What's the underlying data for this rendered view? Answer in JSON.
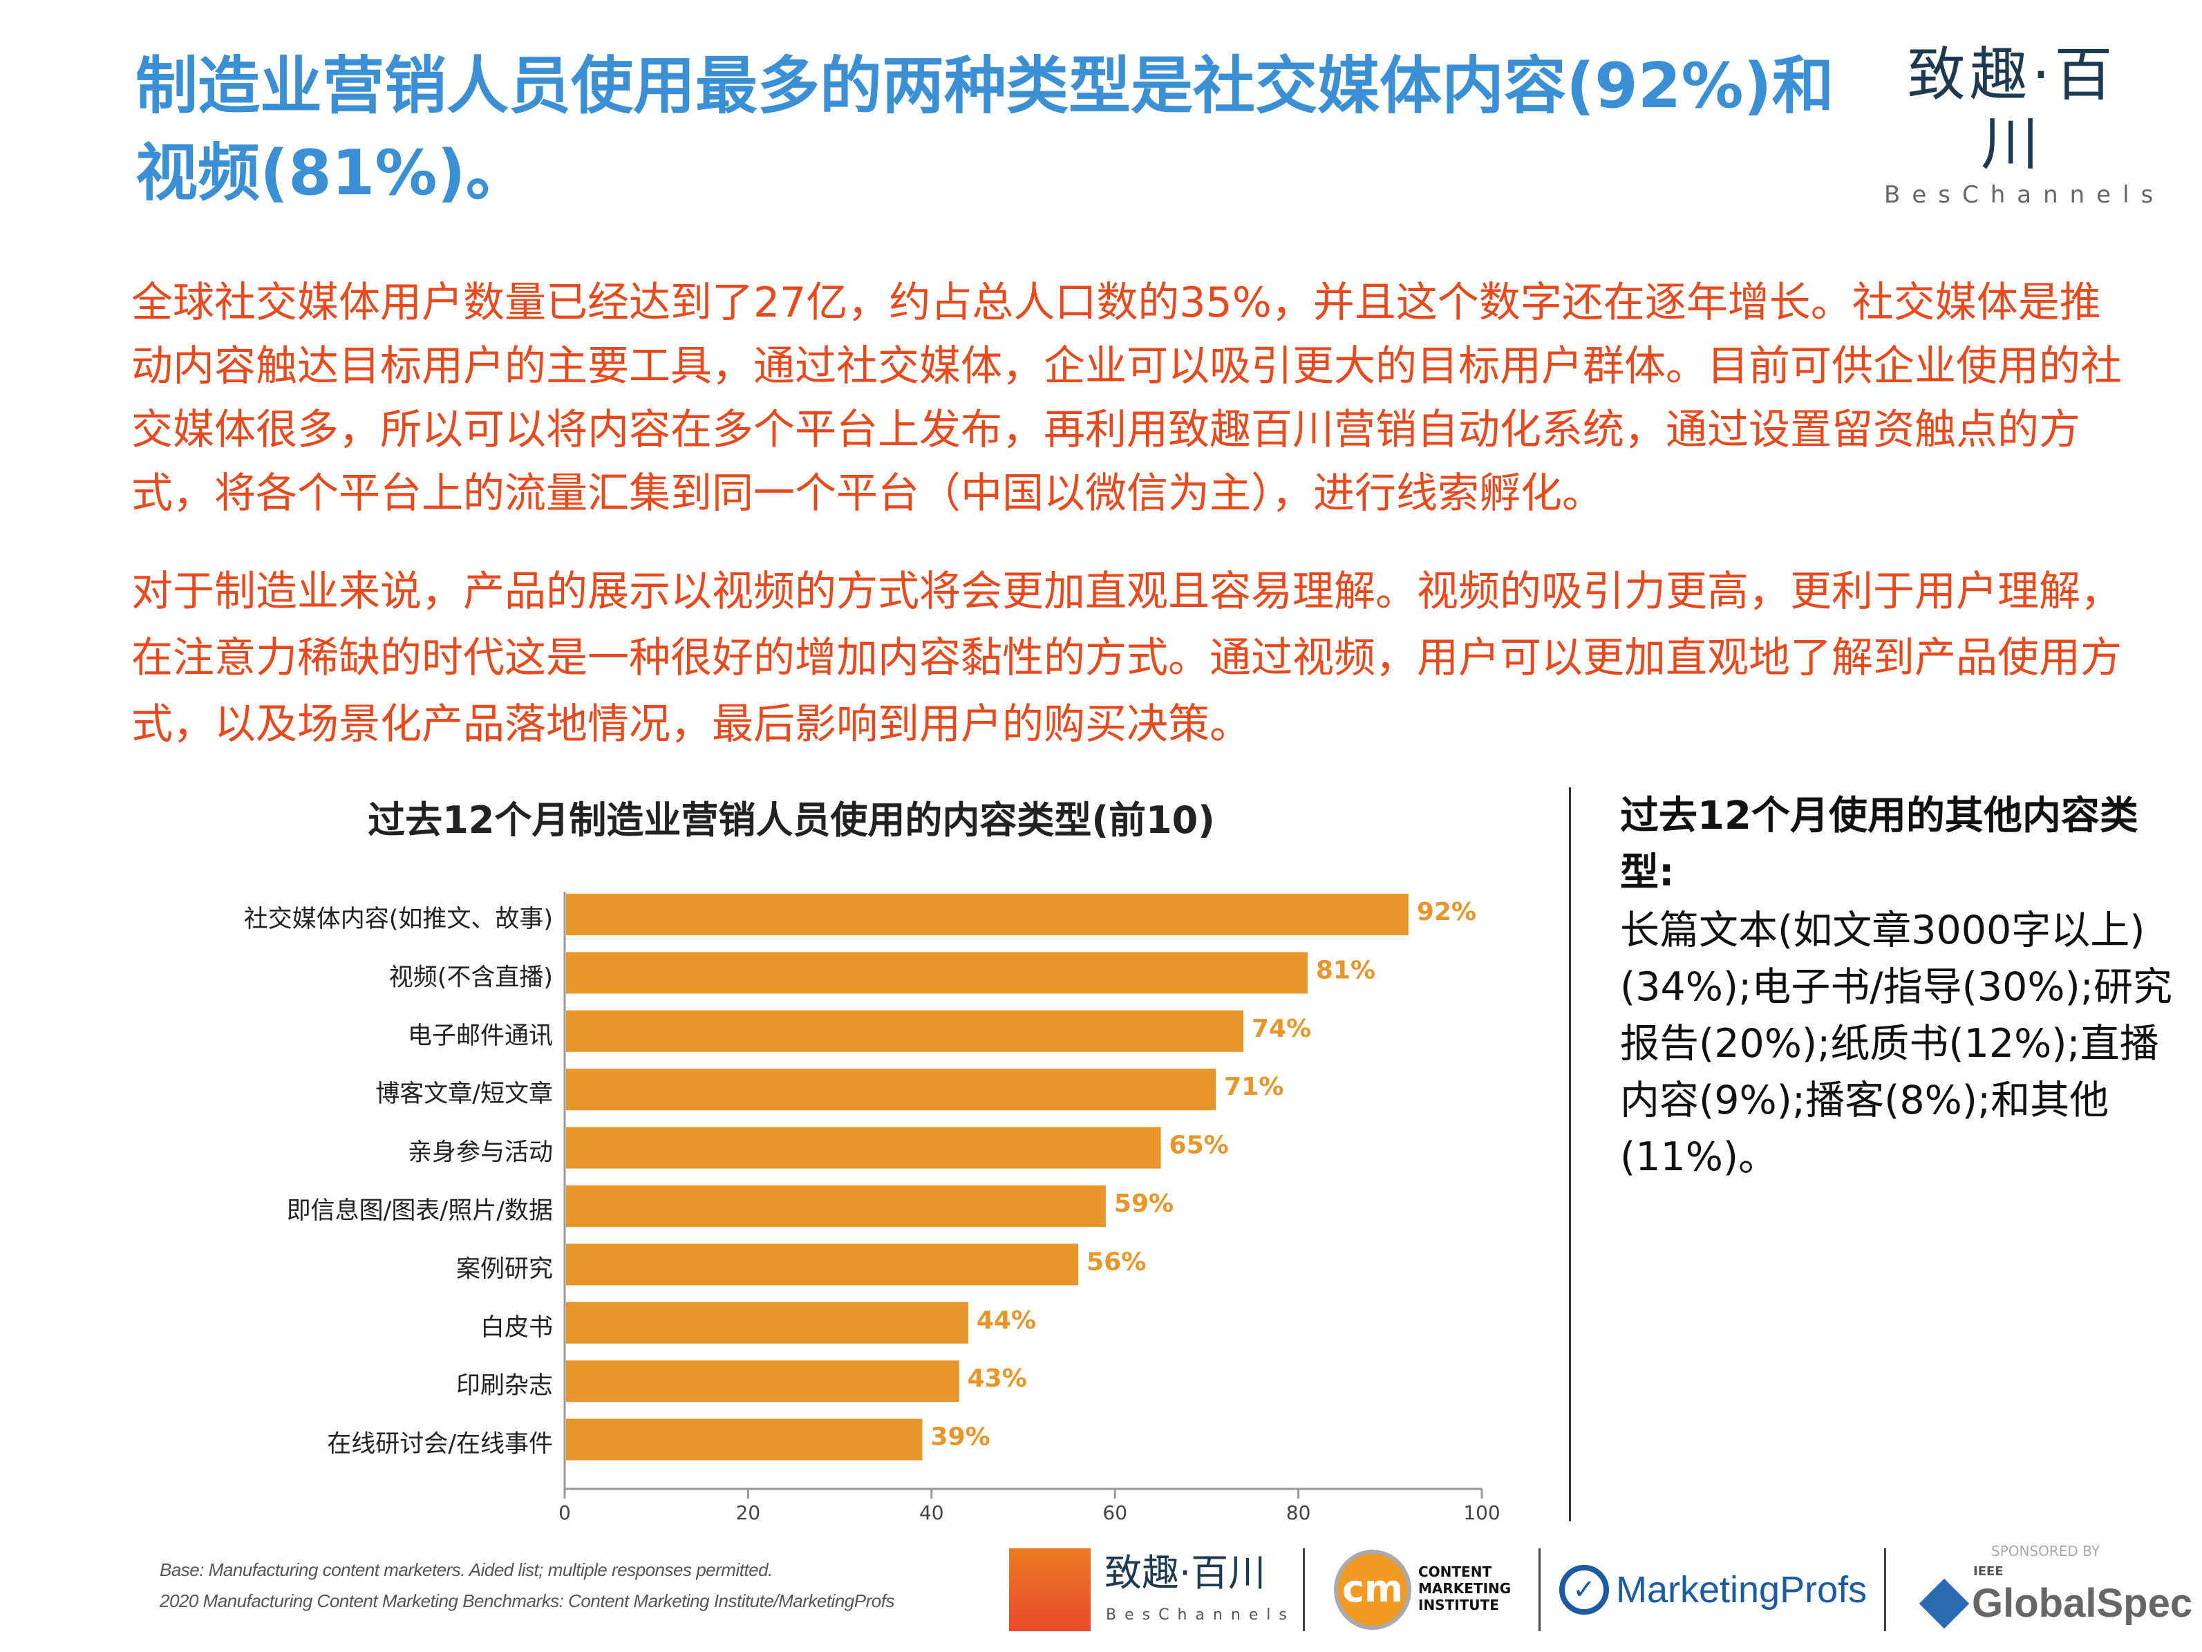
{
  "header": {
    "title": "制造业营销人员使用最多的两种类型是社交媒体内容(92%)和视频(81%)。",
    "logo_cn": "致趣·百川",
    "logo_en": "BesChannels"
  },
  "body": {
    "paragraph1": "全球社交媒体用户数量已经达到了27亿，约占总人口数的35%，并且这个数字还在逐年增长。社交媒体是推动内容触达目标用户的主要工具，通过社交媒体，企业可以吸引更大的目标用户群体。目前可供企业使用的社交媒体很多，所以可以将内容在多个平台上发布，再利用致趣百川营销自动化系统，通过设置留资触点的方式，将各个平台上的流量汇集到同一个平台（中国以微信为主），进行线索孵化。",
    "paragraph2": "对于制造业来说，产品的展示以视频的方式将会更加直观且容易理解。视频的吸引力更高，更利于用户理解，在注意力稀缺的时代这是一种很好的增加内容黏性的方式。通过视频，用户可以更加直观地了解到产品使用方式，以及场景化产品落地情况，最后影响到用户的购买决策。"
  },
  "chart_data": {
    "type": "bar",
    "orientation": "horizontal",
    "title": "过去12个月制造业营销人员使用的内容类型(前10)",
    "categories": [
      "社交媒体内容(如推文、故事)",
      "视频(不含直播)",
      "电子邮件通讯",
      "博客文章/短文章",
      "亲身参与活动",
      "即信息图/图表/照片/数据",
      "案例研究",
      "白皮书",
      "印刷杂志",
      "在线研讨会/在线事件"
    ],
    "values": [
      92,
      81,
      74,
      71,
      65,
      59,
      56,
      44,
      43,
      39
    ],
    "data_labels": [
      "92%",
      "81%",
      "74%",
      "71%",
      "65%",
      "59%",
      "56%",
      "44%",
      "43%",
      "39%"
    ],
    "xlim": [
      0,
      100
    ],
    "xticks": [
      "0",
      "20",
      "40",
      "60",
      "80",
      "100"
    ],
    "grid": false,
    "bar_color": "#e8962a",
    "label_color": "#e8962a"
  },
  "sidebar": {
    "title": "过去12个月使用的其他内容类型:",
    "body": "长篇文本(如文章3000字以上)(34%);电子书/指导(30%);研究报告(20%);纸质书(12%);直播内容(9%);播客(8%);和其他(11%)。"
  },
  "footer": {
    "note1": "Base: Manufacturing content marketers. Aided list; multiple responses permitted.",
    "note2": "2020 Manufacturing Content Marketing Benchmarks: Content Marketing Institute/MarketingProfs",
    "logos": {
      "bes_cn": "致趣·百川",
      "bes_en": "BesChannels",
      "cmi_mark": "cm",
      "cmi_text": "CONTENT MARKETING INSTITUTE",
      "marketingprofs": "MarketingProfs",
      "sponsored_by": "SPONSORED BY",
      "ieee": "IEEE",
      "globalspec": "GlobalSpec"
    }
  },
  "colors": {
    "title": "#3b8fd4",
    "body_text": "#e8491d",
    "bar": "#e8962a"
  }
}
